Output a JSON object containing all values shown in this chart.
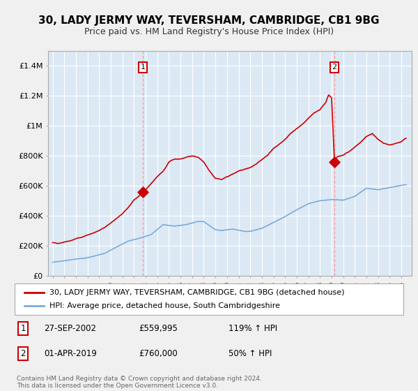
{
  "title": "30, LADY JERMY WAY, TEVERSHAM, CAMBRIDGE, CB1 9BG",
  "subtitle": "Price paid vs. HM Land Registry's House Price Index (HPI)",
  "legend_property": "30, LADY JERMY WAY, TEVERSHAM, CAMBRIDGE, CB1 9BG (detached house)",
  "legend_hpi": "HPI: Average price, detached house, South Cambridgeshire",
  "footer": "Contains HM Land Registry data © Crown copyright and database right 2024.\nThis data is licensed under the Open Government Licence v3.0.",
  "sale1_date": "27-SEP-2002",
  "sale1_price": "£559,995",
  "sale1_hpi": "119% ↑ HPI",
  "sale1_year": 2002.75,
  "sale1_value": 559995,
  "sale2_date": "01-APR-2019",
  "sale2_price": "£760,000",
  "sale2_hpi": "50% ↑ HPI",
  "sale2_year": 2019.25,
  "sale2_value": 760000,
  "ylim": [
    0,
    1500000
  ],
  "yticks": [
    0,
    200000,
    400000,
    600000,
    800000,
    1000000,
    1200000,
    1400000
  ],
  "ytick_labels": [
    "£0",
    "£200K",
    "£400K",
    "£600K",
    "£800K",
    "£1M",
    "£1.2M",
    "£1.4M"
  ],
  "xlim_start": 1994.6,
  "xlim_end": 2025.9,
  "property_color": "#cc0000",
  "hpi_color": "#7aabdb",
  "background_color": "#f0f0f0",
  "plot_bg_color": "#dce9f5",
  "grid_color": "#ffffff",
  "title_fontsize": 11,
  "subtitle_fontsize": 9,
  "axis_fontsize": 8
}
